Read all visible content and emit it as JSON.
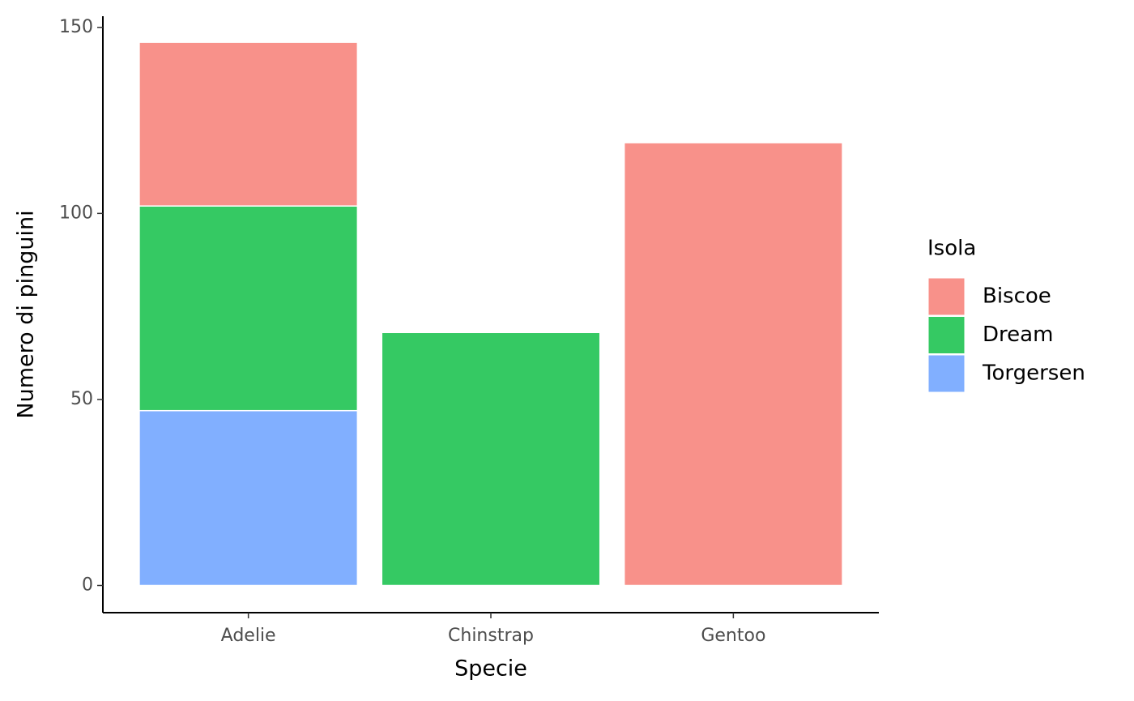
{
  "chart_data": {
    "type": "stacked_bar",
    "x_label": "Specie",
    "y_label": "Numero di pinguini",
    "legend_title": "Isola",
    "categories": [
      "Adelie",
      "Chinstrap",
      "Gentoo"
    ],
    "series": [
      {
        "name": "Biscoe",
        "color": "#f8918a",
        "values": [
          44,
          null,
          119
        ]
      },
      {
        "name": "Dream",
        "color": "#35c963",
        "values": [
          55,
          68,
          null
        ]
      },
      {
        "name": "Torgersen",
        "color": "#81afff",
        "values": [
          47,
          null,
          null
        ]
      }
    ],
    "ylim": [
      -7.3,
      153
    ],
    "yticks": [
      0,
      50,
      100,
      150
    ],
    "grid": false,
    "legend": "right"
  }
}
